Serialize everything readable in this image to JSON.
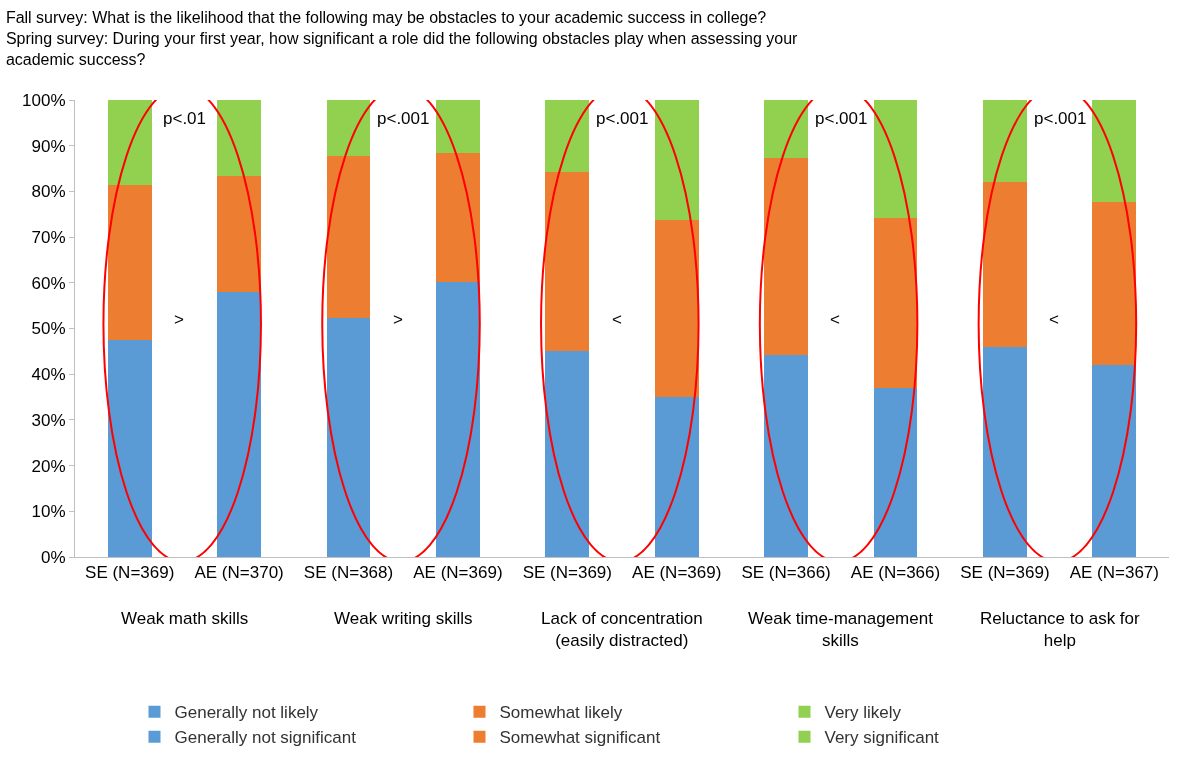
{
  "chart_data": {
    "type": "bar",
    "stacked": true,
    "title": "Fall survey: What is the likelihood that the following may be obstacles to your academic success in college?\nSpring survey: During your first year, how significant a role did the following obstacles play when assessing your academic success?",
    "categories": [
      "SE (N=369)",
      "AE (N=370)",
      "SE (N=368)",
      "AE (N=369)",
      "SE (N=369)",
      "AE (N=369)",
      "SE (N=366)",
      "AE (N=366)",
      "SE (N=369)",
      "AE (N=367)"
    ],
    "series": [
      {
        "name": "Generally not likely",
        "color": "#5b9bd5",
        "values": [
          47.4,
          null,
          52.4,
          null,
          45.0,
          null,
          44.2,
          null,
          45.9,
          null
        ]
      },
      {
        "name": "Somewhat likely",
        "color": "#ed7d31",
        "values": [
          34.0,
          null,
          35.3,
          null,
          39.2,
          null,
          43.2,
          null,
          36.1,
          null
        ]
      },
      {
        "name": "Very likely",
        "color": "#92d050",
        "values": [
          18.6,
          null,
          12.3,
          null,
          15.8,
          null,
          12.6,
          null,
          18.0,
          null
        ]
      },
      {
        "name": "Generally not significant",
        "color": "#5b9bd5",
        "values": [
          null,
          58.0,
          null,
          60.2,
          null,
          35.1,
          null,
          37.0,
          null,
          42.0
        ]
      },
      {
        "name": "Somewhat significant",
        "color": "#ed7d31",
        "values": [
          null,
          25.3,
          null,
          28.1,
          null,
          38.7,
          null,
          37.2,
          null,
          35.7
        ]
      },
      {
        "name": "Very significant",
        "color": "#92d050",
        "values": [
          null,
          16.7,
          null,
          11.7,
          null,
          26.2,
          null,
          25.8,
          null,
          22.3
        ]
      }
    ],
    "ylim": [
      0,
      100
    ],
    "yticks": [
      {
        "value": 0,
        "label": "0%"
      },
      {
        "value": 10,
        "label": "10%"
      },
      {
        "value": 20,
        "label": "20%"
      },
      {
        "value": 30,
        "label": "30%"
      },
      {
        "value": 40,
        "label": "40%"
      },
      {
        "value": 50,
        "label": "50%"
      },
      {
        "value": 60,
        "label": "60%"
      },
      {
        "value": 70,
        "label": "70%"
      },
      {
        "value": 80,
        "label": "80%"
      },
      {
        "value": 90,
        "label": "90%"
      },
      {
        "value": 100,
        "label": "100%"
      }
    ],
    "grid": false,
    "legend": "bottom",
    "annotations": [
      "Weak math skills",
      "Weak writing skills",
      "Lack of concentration (easily distracted)",
      "Weak time-management skills",
      "Reluctance to ask for help",
      "p<.01",
      "p<.001",
      "p<.001",
      "p<.001",
      "p<.001",
      ">",
      ">",
      "<",
      "<",
      "<"
    ]
  }
}
